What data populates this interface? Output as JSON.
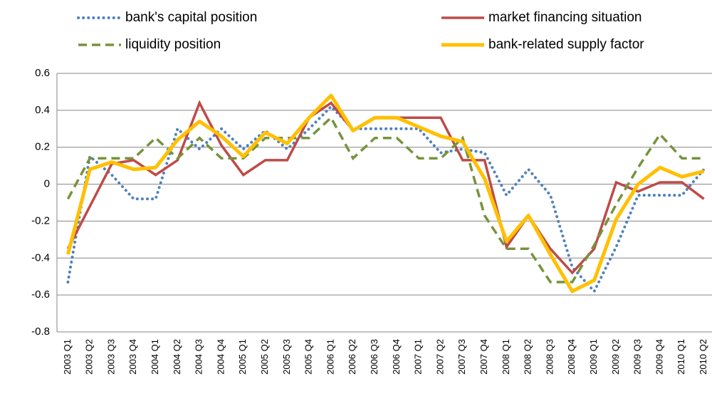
{
  "chart_data": {
    "type": "line",
    "categories": [
      "2003 Q1",
      "2003 Q2",
      "2003 Q3",
      "2003 Q4",
      "2004 Q1",
      "2004 Q2",
      "2004 Q3",
      "2004 Q4",
      "2005 Q1",
      "2005 Q2",
      "2005 Q3",
      "2005 Q4",
      "2006 Q1",
      "2006 Q2",
      "2006 Q3",
      "2006 Q4",
      "2007 Q1",
      "2007 Q2",
      "2007 Q3",
      "2007 Q4",
      "2008 Q1",
      "2008 Q2",
      "2008 Q3",
      "2008 Q4",
      "2009 Q1",
      "2009 Q2",
      "2009 Q3",
      "2009 Q4",
      "2010 Q1",
      "2010 Q2"
    ],
    "series": [
      {
        "name": "bank's capital position",
        "color": "#4f81bd",
        "style": "dotted",
        "values": [
          -0.53,
          0.15,
          0.05,
          -0.08,
          -0.08,
          0.3,
          0.19,
          0.3,
          0.19,
          0.29,
          0.19,
          0.3,
          0.42,
          0.3,
          0.3,
          0.3,
          0.3,
          0.17,
          0.19,
          0.17,
          -0.06,
          0.08,
          -0.06,
          -0.45,
          -0.58,
          -0.34,
          -0.06,
          -0.06,
          -0.06,
          0.08
        ]
      },
      {
        "name": "market financing situation",
        "color": "#be4b48",
        "style": "solid",
        "values": [
          -0.35,
          -0.12,
          0.11,
          0.13,
          0.05,
          0.13,
          0.44,
          0.21,
          0.05,
          0.13,
          0.13,
          0.36,
          0.44,
          0.29,
          0.36,
          0.36,
          0.36,
          0.36,
          0.13,
          0.13,
          -0.34,
          -0.17,
          -0.35,
          -0.48,
          -0.35,
          0.01,
          -0.04,
          0.01,
          0.01,
          -0.08
        ]
      },
      {
        "name": "liquidity position",
        "color": "#77933c",
        "style": "dashed",
        "values": [
          -0.08,
          0.14,
          0.14,
          0.14,
          0.25,
          0.14,
          0.25,
          0.14,
          0.14,
          0.25,
          0.25,
          0.25,
          0.36,
          0.14,
          0.25,
          0.25,
          0.14,
          0.14,
          0.25,
          -0.17,
          -0.35,
          -0.35,
          -0.53,
          -0.53,
          -0.33,
          -0.11,
          0.09,
          0.27,
          0.14,
          0.14
        ]
      },
      {
        "name": "bank-related supply factor",
        "color": "#ffc000",
        "style": "thick",
        "values": [
          -0.38,
          0.08,
          0.12,
          0.08,
          0.09,
          0.24,
          0.34,
          0.26,
          0.15,
          0.28,
          0.22,
          0.36,
          0.48,
          0.29,
          0.36,
          0.36,
          0.31,
          0.26,
          0.23,
          0.03,
          -0.31,
          -0.17,
          -0.38,
          -0.58,
          -0.52,
          -0.19,
          0,
          0.09,
          0.04,
          0.07
        ]
      }
    ],
    "ylim": [
      -0.8,
      0.6
    ],
    "yticks": [
      -0.8,
      -0.6,
      -0.4,
      -0.2,
      0,
      0.2,
      0.4,
      0.6
    ],
    "grid": true
  }
}
